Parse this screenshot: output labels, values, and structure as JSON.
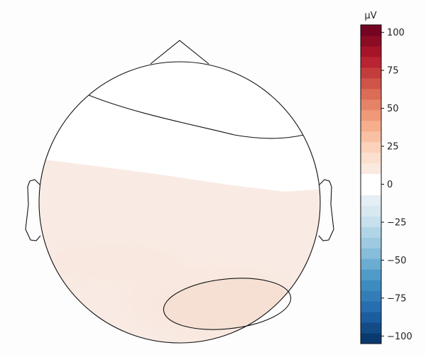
{
  "chart_data": {
    "type": "heatmap",
    "unit_label": "µV",
    "colorbar": {
      "vmin": -105,
      "vmax": 105,
      "ticks": [
        100,
        75,
        50,
        25,
        0,
        -25,
        -50,
        -75,
        -100
      ],
      "colormap": "RdBu_r",
      "levels": 30
    },
    "contour_lines": [
      {
        "name": "upper-contour",
        "level": 0
      },
      {
        "name": "lower-contour",
        "level": 6
      }
    ],
    "field_regions": [
      {
        "name": "frontal-region",
        "value": 0
      },
      {
        "name": "posterior-region",
        "value": 3
      },
      {
        "name": "right-posterior-patch",
        "value": 6
      }
    ]
  },
  "colors": {
    "white_zone": "#ffffff",
    "pale_red": "#f9ebe4",
    "light_red": "#f8e5dc",
    "medium_red": "#f6dfd3",
    "outline": "#111111"
  }
}
